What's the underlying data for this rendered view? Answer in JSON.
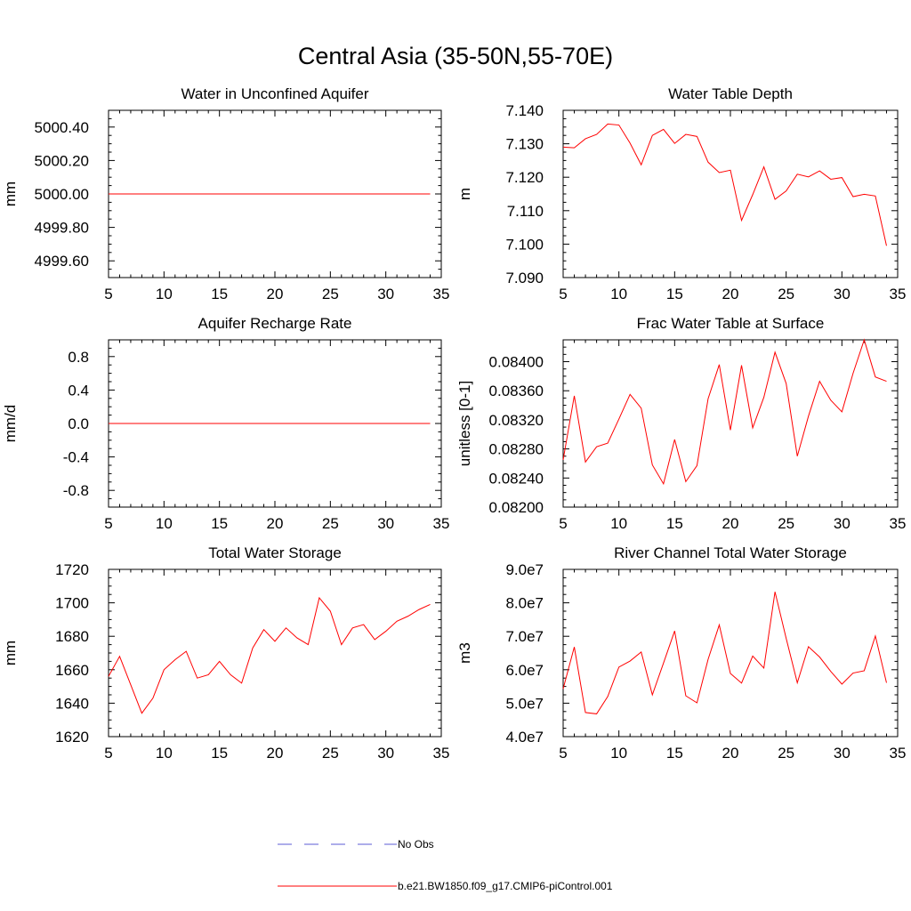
{
  "figure": {
    "title": "Central Asia (35-50N,55-70E)"
  },
  "legend": [
    {
      "label": "No Obs",
      "style": "dashed",
      "color": "#5b5bd6"
    },
    {
      "label": "b.e21.BW1850.f09_g17.CMIP6-piControl.001",
      "style": "solid",
      "color": "#ff0000"
    }
  ],
  "chart_data": [
    {
      "type": "line",
      "title": "Water in Unconfined Aquifer",
      "ylabel": "mm",
      "xlim": [
        5,
        35
      ],
      "ylim": [
        4999.5,
        5000.5
      ],
      "xticks": [
        5,
        10,
        15,
        20,
        25,
        30,
        35
      ],
      "yticks": [
        4999.6,
        4999.8,
        5000.0,
        5000.2,
        5000.4
      ],
      "ytick_labels": [
        "4999.60",
        "4999.80",
        "5000.00",
        "5000.20",
        "5000.40"
      ],
      "series": [
        {
          "color": "#ff0000",
          "x": [
            5,
            6,
            7,
            8,
            9,
            10,
            11,
            12,
            13,
            14,
            15,
            16,
            17,
            18,
            19,
            20,
            21,
            22,
            23,
            24,
            25,
            26,
            27,
            28,
            29,
            30,
            31,
            32,
            33,
            34
          ],
          "y": [
            5000,
            5000,
            5000,
            5000,
            5000,
            5000,
            5000,
            5000,
            5000,
            5000,
            5000,
            5000,
            5000,
            5000,
            5000,
            5000,
            5000,
            5000,
            5000,
            5000,
            5000,
            5000,
            5000,
            5000,
            5000,
            5000,
            5000,
            5000,
            5000,
            5000
          ]
        }
      ]
    },
    {
      "type": "line",
      "title": "Water Table Depth",
      "ylabel": "m",
      "xlim": [
        5,
        35
      ],
      "ylim": [
        7.09,
        7.14
      ],
      "xticks": [
        5,
        10,
        15,
        20,
        25,
        30,
        35
      ],
      "yticks": [
        7.09,
        7.1,
        7.11,
        7.12,
        7.13,
        7.14
      ],
      "ytick_labels": [
        "7.090",
        "7.100",
        "7.110",
        "7.120",
        "7.130",
        "7.140"
      ],
      "series": [
        {
          "color": "#ff0000",
          "x": [
            5,
            6,
            7,
            8,
            9,
            10,
            11,
            12,
            13,
            14,
            15,
            16,
            17,
            18,
            19,
            20,
            21,
            22,
            23,
            24,
            25,
            26,
            27,
            28,
            29,
            30,
            31,
            32,
            33,
            34
          ],
          "y": [
            7.129,
            7.1288,
            7.1315,
            7.1328,
            7.1359,
            7.1356,
            7.1302,
            7.1237,
            7.1325,
            7.1343,
            7.1301,
            7.1328,
            7.1322,
            7.1245,
            7.1214,
            7.1221,
            7.1071,
            7.1148,
            7.1231,
            7.1134,
            7.1159,
            7.1209,
            7.1201,
            7.1219,
            7.1194,
            7.1199,
            7.1142,
            7.1149,
            7.1144,
            7.0995
          ]
        }
      ]
    },
    {
      "type": "line",
      "title": "Aquifer Recharge Rate",
      "ylabel": "mm/d",
      "xlim": [
        5,
        35
      ],
      "ylim": [
        -1.0,
        1.0
      ],
      "xticks": [
        5,
        10,
        15,
        20,
        25,
        30,
        35
      ],
      "yticks": [
        -0.8,
        -0.4,
        0.0,
        0.4,
        0.8
      ],
      "ytick_labels": [
        "-0.8",
        "-0.4",
        "0.0",
        "0.4",
        "0.8"
      ],
      "series": [
        {
          "color": "#ff0000",
          "x": [
            5,
            6,
            7,
            8,
            9,
            10,
            11,
            12,
            13,
            14,
            15,
            16,
            17,
            18,
            19,
            20,
            21,
            22,
            23,
            24,
            25,
            26,
            27,
            28,
            29,
            30,
            31,
            32,
            33,
            34
          ],
          "y": [
            0,
            0,
            0,
            0,
            0,
            0,
            0,
            0,
            0,
            0,
            0,
            0,
            0,
            0,
            0,
            0,
            0,
            0,
            0,
            0,
            0,
            0,
            0,
            0,
            0,
            0,
            0,
            0,
            0,
            0
          ]
        }
      ]
    },
    {
      "type": "line",
      "title": "Frac Water Table at Surface",
      "ylabel": "unitless [0-1]",
      "xlim": [
        5,
        35
      ],
      "ylim": [
        0.082,
        0.0843
      ],
      "xticks": [
        5,
        10,
        15,
        20,
        25,
        30,
        35
      ],
      "yticks": [
        0.082,
        0.0824,
        0.0828,
        0.0832,
        0.0836,
        0.084
      ],
      "ytick_labels": [
        "0.08200",
        "0.08240",
        "0.08280",
        "0.08320",
        "0.08360",
        "0.08400"
      ],
      "series": [
        {
          "color": "#ff0000",
          "x": [
            5,
            6,
            7,
            8,
            9,
            10,
            11,
            12,
            13,
            14,
            15,
            16,
            17,
            18,
            19,
            20,
            21,
            22,
            23,
            24,
            25,
            26,
            27,
            28,
            29,
            30,
            31,
            32,
            33,
            34
          ],
          "y": [
            0.08265,
            0.08353,
            0.08262,
            0.08283,
            0.08288,
            0.08321,
            0.08355,
            0.08336,
            0.08258,
            0.08232,
            0.08293,
            0.08235,
            0.08257,
            0.08349,
            0.08396,
            0.08306,
            0.08395,
            0.08309,
            0.08351,
            0.08413,
            0.0837,
            0.0827,
            0.08325,
            0.08373,
            0.08347,
            0.08331,
            0.08384,
            0.0843,
            0.08379,
            0.08373
          ]
        }
      ]
    },
    {
      "type": "line",
      "title": "Total Water Storage",
      "ylabel": "mm",
      "xlim": [
        5,
        35
      ],
      "ylim": [
        1620,
        1720
      ],
      "xticks": [
        5,
        10,
        15,
        20,
        25,
        30,
        35
      ],
      "yticks": [
        1620,
        1640,
        1660,
        1680,
        1700,
        1720
      ],
      "ytick_labels": [
        "1620",
        "1640",
        "1660",
        "1680",
        "1700",
        "1720"
      ],
      "series": [
        {
          "color": "#ff0000",
          "x": [
            5,
            6,
            7,
            8,
            9,
            10,
            11,
            12,
            13,
            14,
            15,
            16,
            17,
            18,
            19,
            20,
            21,
            22,
            23,
            24,
            25,
            26,
            27,
            28,
            29,
            30,
            31,
            32,
            33,
            34
          ],
          "y": [
            1656,
            1668,
            1651,
            1634,
            1643,
            1660,
            1666,
            1671,
            1655,
            1657,
            1665,
            1657,
            1652,
            1673,
            1684,
            1677,
            1685,
            1679,
            1675,
            1703,
            1695,
            1675,
            1685,
            1687,
            1678,
            1683,
            1689,
            1692,
            1696,
            1699
          ]
        }
      ]
    },
    {
      "type": "line",
      "title": "River Channel Total Water Storage",
      "ylabel": "m3",
      "xlim": [
        5,
        35
      ],
      "ylim": [
        40000000,
        90000000
      ],
      "xticks": [
        5,
        10,
        15,
        20,
        25,
        30,
        35
      ],
      "yticks": [
        40000000,
        50000000,
        60000000,
        70000000,
        80000000,
        90000000
      ],
      "ytick_labels": [
        "4.0e7",
        "5.0e7",
        "6.0e7",
        "7.0e7",
        "8.0e7",
        "9.0e7"
      ],
      "series": [
        {
          "color": "#ff0000",
          "x": [
            5,
            6,
            7,
            8,
            9,
            10,
            11,
            12,
            13,
            14,
            15,
            16,
            17,
            18,
            19,
            20,
            21,
            22,
            23,
            24,
            25,
            26,
            27,
            28,
            29,
            30,
            31,
            32,
            33,
            34
          ],
          "y": [
            54300000,
            66800000,
            47200000,
            46800000,
            52000000,
            60800000,
            62600000,
            65300000,
            52500000,
            62000000,
            71600000,
            52200000,
            50100000,
            63100000,
            73400000,
            58900000,
            56000000,
            64100000,
            60500000,
            83300000,
            69400000,
            56100000,
            66900000,
            63800000,
            59500000,
            55700000,
            59000000,
            59700000,
            70100000,
            56100000
          ]
        }
      ]
    }
  ]
}
